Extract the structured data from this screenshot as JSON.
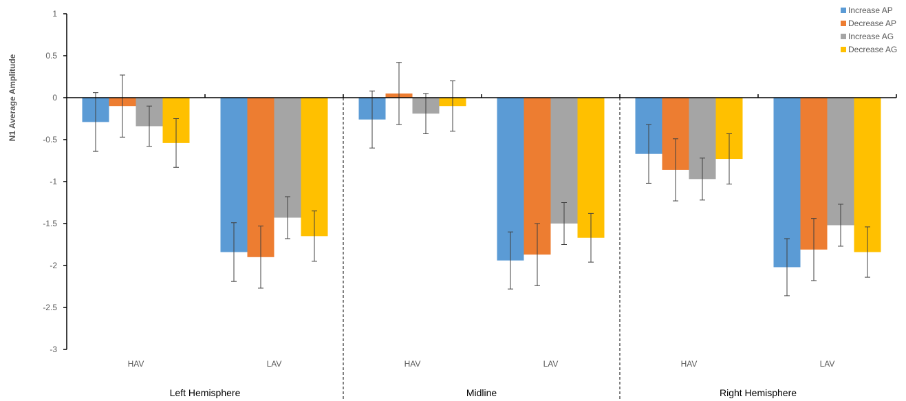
{
  "chart_data": {
    "type": "bar",
    "ylabel": "N1 Average Amplitude",
    "ylim": [
      -3,
      1
    ],
    "yticks": [
      1,
      0.5,
      0,
      -0.5,
      -1,
      -1.5,
      -2,
      -2.5,
      -3
    ],
    "ytick_labels": [
      "1",
      "0.5",
      "0",
      "-0.5",
      "-1",
      "-1.5",
      "-2",
      "-2.5",
      "-3"
    ],
    "groups": [
      "Left Hemisphere",
      "Midline",
      "Right Hemisphere"
    ],
    "categories": [
      "HAV",
      "LAV",
      "HAV",
      "LAV",
      "HAV",
      "LAV"
    ],
    "series": [
      {
        "name": "Increase AP",
        "color": "#5B9BD5",
        "values": [
          -0.29,
          -1.84,
          -0.26,
          -1.94,
          -0.67,
          -2.02
        ],
        "errors": [
          0.35,
          0.35,
          0.34,
          0.34,
          0.35,
          0.34
        ]
      },
      {
        "name": "Decrease AP",
        "color": "#ED7D31",
        "values": [
          -0.1,
          -1.9,
          0.05,
          -1.87,
          -0.86,
          -1.81
        ],
        "errors": [
          0.37,
          0.37,
          0.37,
          0.37,
          0.37,
          0.37
        ]
      },
      {
        "name": "Increase AG",
        "color": "#A5A5A5",
        "values": [
          -0.34,
          -1.43,
          -0.19,
          -1.5,
          -0.97,
          -1.52
        ],
        "errors": [
          0.24,
          0.25,
          0.24,
          0.25,
          0.25,
          0.25
        ]
      },
      {
        "name": "Decrease AG",
        "color": "#FFC000",
        "values": [
          -0.54,
          -1.65,
          -0.1,
          -1.67,
          -0.73,
          -1.84
        ],
        "errors": [
          0.29,
          0.3,
          0.3,
          0.29,
          0.3,
          0.3
        ]
      }
    ],
    "legend_position": "top-right",
    "grid": false
  }
}
